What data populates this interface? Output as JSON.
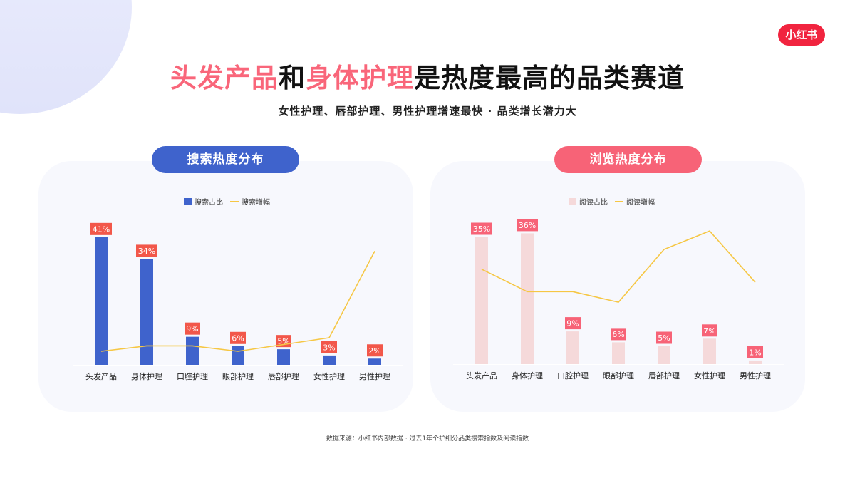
{
  "header": {
    "brand": "小红书",
    "title_parts": [
      {
        "text": "头发产品",
        "highlight": true
      },
      {
        "text": "和",
        "highlight": false
      },
      {
        "text": "身体护理",
        "highlight": true
      },
      {
        "text": "是热度最高的品类赛道",
        "highlight": false
      }
    ],
    "subtitle": "女性护理、唇部护理、男性护理增速最快 · 品类增长潜力大"
  },
  "colors": {
    "brand": "#f1243f",
    "title_highlight": "#f9667a",
    "search_bar": "#3f63cc",
    "browse_bar": "#f5d9da",
    "line": "#f6c744",
    "search_label_bg": "#f2574a",
    "browse_label_bg": "#f76377"
  },
  "left_panel": {
    "pill": "搜索热度分布",
    "legend_bar": "搜索占比",
    "legend_line": "搜索增幅"
  },
  "right_panel": {
    "pill": "浏览热度分布",
    "legend_bar": "阅读占比",
    "legend_line": "阅读增幅"
  },
  "footer": "数据来源：小红书内部数据 · 过去1年个护细分品类搜索指数及阅读指数",
  "chart_data": [
    {
      "type": "bar",
      "title": "搜索热度分布",
      "categories": [
        "头发产品",
        "身体护理",
        "口腔护理",
        "眼部护理",
        "唇部护理",
        "女性护理",
        "男性护理"
      ],
      "series": [
        {
          "name": "搜索占比",
          "type": "bar",
          "values": [
            41,
            34,
            9,
            6,
            5,
            3,
            2
          ],
          "labels": [
            "41%",
            "34%",
            "9%",
            "6%",
            "5%",
            "3%",
            "2%"
          ]
        },
        {
          "name": "搜索增幅",
          "type": "line",
          "values": [
            10,
            14,
            14,
            10,
            15,
            20,
            84
          ],
          "note": "relative, unlabeled"
        }
      ],
      "xlabel": "",
      "ylabel": "",
      "ylim": [
        0,
        45
      ],
      "grid": false,
      "legend_position": "top"
    },
    {
      "type": "bar",
      "title": "浏览热度分布",
      "categories": [
        "头发产品",
        "身体护理",
        "口腔护理",
        "眼部护理",
        "唇部护理",
        "女性护理",
        "男性护理"
      ],
      "series": [
        {
          "name": "阅读占比",
          "type": "bar",
          "values": [
            35,
            36,
            9,
            6,
            5,
            7,
            1
          ],
          "labels": [
            "35%",
            "36%",
            "9%",
            "6%",
            "5%",
            "7%",
            "1%"
          ]
        },
        {
          "name": "阅读增幅",
          "type": "line",
          "values": [
            72,
            55,
            55,
            47,
            87,
            101,
            62
          ],
          "note": "relative, unlabeled"
        }
      ],
      "xlabel": "",
      "ylabel": "",
      "ylim": [
        0,
        40
      ],
      "grid": false,
      "legend_position": "top"
    }
  ]
}
